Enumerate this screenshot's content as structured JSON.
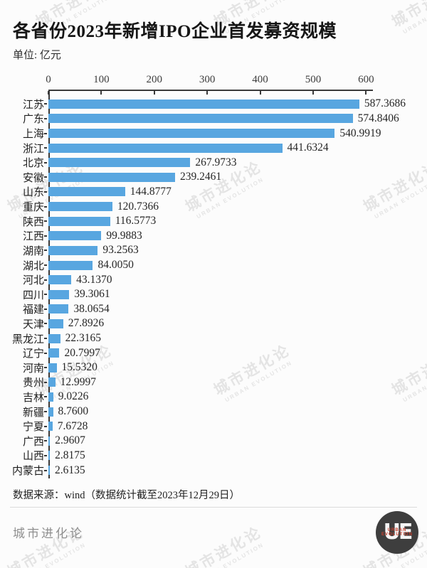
{
  "header": {
    "title": "各省份2023年新增IPO企业首发募资规模",
    "unit_label": "单位: 亿元"
  },
  "watermark": {
    "line1": "城市进化论",
    "line2": "URBAN EVOLUTION"
  },
  "chart_data": {
    "type": "bar",
    "orientation": "horizontal",
    "title": "各省份2023年新增IPO企业首发募资规模",
    "unit": "亿元",
    "categories": [
      "江苏",
      "广东",
      "上海",
      "浙江",
      "北京",
      "安徽",
      "山东",
      "重庆",
      "陕西",
      "江西",
      "湖南",
      "湖北",
      "河北",
      "四川",
      "福建",
      "天津",
      "黑龙江",
      "辽宁",
      "河南",
      "贵州",
      "吉林",
      "新疆",
      "宁夏",
      "广西",
      "山西",
      "内蒙古"
    ],
    "values": [
      587.3686,
      574.8406,
      540.9919,
      441.6324,
      267.9733,
      239.2461,
      144.8777,
      120.7366,
      116.5773,
      99.9883,
      93.2563,
      84.005,
      43.137,
      39.3061,
      38.0654,
      27.8926,
      22.3165,
      20.7997,
      15.532,
      12.9997,
      9.0226,
      8.76,
      7.6728,
      2.9607,
      2.8175,
      2.6135
    ],
    "value_labels": [
      "587.3686",
      "574.8406",
      "540.9919",
      "441.6324",
      "267.9733",
      "239.2461",
      "144.8777",
      "120.7366",
      "116.5773",
      "99.9883",
      "93.2563",
      "84.0050",
      "43.1370",
      "39.3061",
      "38.0654",
      "27.8926",
      "22.3165",
      "20.7997",
      "15.5320",
      "12.9997",
      "9.0226",
      "8.7600",
      "7.6728",
      "2.9607",
      "2.8175",
      "2.6135"
    ],
    "x_ticks": [
      0,
      100,
      200,
      300,
      400,
      500,
      600
    ],
    "xlim": [
      0,
      620
    ],
    "bar_color": "#58A6E0",
    "grid": false,
    "legend": "none"
  },
  "footer": {
    "source": "数据来源：wind（数据统计截至2023年12月29日）",
    "brand": "城市进化论",
    "logo_text": "UE",
    "logo_subtext": "URBAN EVOLUTION"
  }
}
